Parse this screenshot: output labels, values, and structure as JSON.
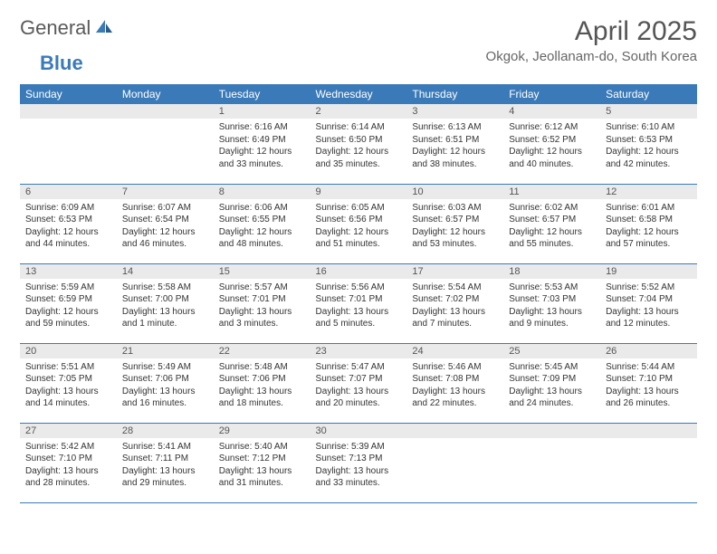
{
  "brand": {
    "name1": "General",
    "name2": "Blue"
  },
  "title": "April 2025",
  "location": "Okgok, Jeollanam-do, South Korea",
  "colors": {
    "header_bg": "#3a7ab8",
    "header_fg": "#ffffff",
    "daynum_bg": "#eaeaea",
    "cell_border": "#3a7ab8",
    "page_bg": "#ffffff",
    "text": "#333333"
  },
  "typography": {
    "month_title_pt": 30,
    "location_pt": 15,
    "weekday_pt": 12,
    "daynum_pt": 11,
    "body_pt": 10
  },
  "weekdays": [
    "Sunday",
    "Monday",
    "Tuesday",
    "Wednesday",
    "Thursday",
    "Friday",
    "Saturday"
  ],
  "weeks": [
    [
      {
        "n": "1",
        "sunrise": "Sunrise: 6:16 AM",
        "sunset": "Sunset: 6:49 PM",
        "daylight": "Daylight: 12 hours and 33 minutes.",
        "col": 2
      },
      {
        "n": "2",
        "sunrise": "Sunrise: 6:14 AM",
        "sunset": "Sunset: 6:50 PM",
        "daylight": "Daylight: 12 hours and 35 minutes.",
        "col": 3
      },
      {
        "n": "3",
        "sunrise": "Sunrise: 6:13 AM",
        "sunset": "Sunset: 6:51 PM",
        "daylight": "Daylight: 12 hours and 38 minutes.",
        "col": 4
      },
      {
        "n": "4",
        "sunrise": "Sunrise: 6:12 AM",
        "sunset": "Sunset: 6:52 PM",
        "daylight": "Daylight: 12 hours and 40 minutes.",
        "col": 5
      },
      {
        "n": "5",
        "sunrise": "Sunrise: 6:10 AM",
        "sunset": "Sunset: 6:53 PM",
        "daylight": "Daylight: 12 hours and 42 minutes.",
        "col": 6
      }
    ],
    [
      {
        "n": "6",
        "sunrise": "Sunrise: 6:09 AM",
        "sunset": "Sunset: 6:53 PM",
        "daylight": "Daylight: 12 hours and 44 minutes.",
        "col": 0
      },
      {
        "n": "7",
        "sunrise": "Sunrise: 6:07 AM",
        "sunset": "Sunset: 6:54 PM",
        "daylight": "Daylight: 12 hours and 46 minutes.",
        "col": 1
      },
      {
        "n": "8",
        "sunrise": "Sunrise: 6:06 AM",
        "sunset": "Sunset: 6:55 PM",
        "daylight": "Daylight: 12 hours and 48 minutes.",
        "col": 2
      },
      {
        "n": "9",
        "sunrise": "Sunrise: 6:05 AM",
        "sunset": "Sunset: 6:56 PM",
        "daylight": "Daylight: 12 hours and 51 minutes.",
        "col": 3
      },
      {
        "n": "10",
        "sunrise": "Sunrise: 6:03 AM",
        "sunset": "Sunset: 6:57 PM",
        "daylight": "Daylight: 12 hours and 53 minutes.",
        "col": 4
      },
      {
        "n": "11",
        "sunrise": "Sunrise: 6:02 AM",
        "sunset": "Sunset: 6:57 PM",
        "daylight": "Daylight: 12 hours and 55 minutes.",
        "col": 5
      },
      {
        "n": "12",
        "sunrise": "Sunrise: 6:01 AM",
        "sunset": "Sunset: 6:58 PM",
        "daylight": "Daylight: 12 hours and 57 minutes.",
        "col": 6
      }
    ],
    [
      {
        "n": "13",
        "sunrise": "Sunrise: 5:59 AM",
        "sunset": "Sunset: 6:59 PM",
        "daylight": "Daylight: 12 hours and 59 minutes.",
        "col": 0
      },
      {
        "n": "14",
        "sunrise": "Sunrise: 5:58 AM",
        "sunset": "Sunset: 7:00 PM",
        "daylight": "Daylight: 13 hours and 1 minute.",
        "col": 1
      },
      {
        "n": "15",
        "sunrise": "Sunrise: 5:57 AM",
        "sunset": "Sunset: 7:01 PM",
        "daylight": "Daylight: 13 hours and 3 minutes.",
        "col": 2
      },
      {
        "n": "16",
        "sunrise": "Sunrise: 5:56 AM",
        "sunset": "Sunset: 7:01 PM",
        "daylight": "Daylight: 13 hours and 5 minutes.",
        "col": 3
      },
      {
        "n": "17",
        "sunrise": "Sunrise: 5:54 AM",
        "sunset": "Sunset: 7:02 PM",
        "daylight": "Daylight: 13 hours and 7 minutes.",
        "col": 4
      },
      {
        "n": "18",
        "sunrise": "Sunrise: 5:53 AM",
        "sunset": "Sunset: 7:03 PM",
        "daylight": "Daylight: 13 hours and 9 minutes.",
        "col": 5
      },
      {
        "n": "19",
        "sunrise": "Sunrise: 5:52 AM",
        "sunset": "Sunset: 7:04 PM",
        "daylight": "Daylight: 13 hours and 12 minutes.",
        "col": 6
      }
    ],
    [
      {
        "n": "20",
        "sunrise": "Sunrise: 5:51 AM",
        "sunset": "Sunset: 7:05 PM",
        "daylight": "Daylight: 13 hours and 14 minutes.",
        "col": 0
      },
      {
        "n": "21",
        "sunrise": "Sunrise: 5:49 AM",
        "sunset": "Sunset: 7:06 PM",
        "daylight": "Daylight: 13 hours and 16 minutes.",
        "col": 1
      },
      {
        "n": "22",
        "sunrise": "Sunrise: 5:48 AM",
        "sunset": "Sunset: 7:06 PM",
        "daylight": "Daylight: 13 hours and 18 minutes.",
        "col": 2
      },
      {
        "n": "23",
        "sunrise": "Sunrise: 5:47 AM",
        "sunset": "Sunset: 7:07 PM",
        "daylight": "Daylight: 13 hours and 20 minutes.",
        "col": 3
      },
      {
        "n": "24",
        "sunrise": "Sunrise: 5:46 AM",
        "sunset": "Sunset: 7:08 PM",
        "daylight": "Daylight: 13 hours and 22 minutes.",
        "col": 4
      },
      {
        "n": "25",
        "sunrise": "Sunrise: 5:45 AM",
        "sunset": "Sunset: 7:09 PM",
        "daylight": "Daylight: 13 hours and 24 minutes.",
        "col": 5
      },
      {
        "n": "26",
        "sunrise": "Sunrise: 5:44 AM",
        "sunset": "Sunset: 7:10 PM",
        "daylight": "Daylight: 13 hours and 26 minutes.",
        "col": 6
      }
    ],
    [
      {
        "n": "27",
        "sunrise": "Sunrise: 5:42 AM",
        "sunset": "Sunset: 7:10 PM",
        "daylight": "Daylight: 13 hours and 28 minutes.",
        "col": 0
      },
      {
        "n": "28",
        "sunrise": "Sunrise: 5:41 AM",
        "sunset": "Sunset: 7:11 PM",
        "daylight": "Daylight: 13 hours and 29 minutes.",
        "col": 1
      },
      {
        "n": "29",
        "sunrise": "Sunrise: 5:40 AM",
        "sunset": "Sunset: 7:12 PM",
        "daylight": "Daylight: 13 hours and 31 minutes.",
        "col": 2
      },
      {
        "n": "30",
        "sunrise": "Sunrise: 5:39 AM",
        "sunset": "Sunset: 7:13 PM",
        "daylight": "Daylight: 13 hours and 33 minutes.",
        "col": 3
      }
    ]
  ]
}
